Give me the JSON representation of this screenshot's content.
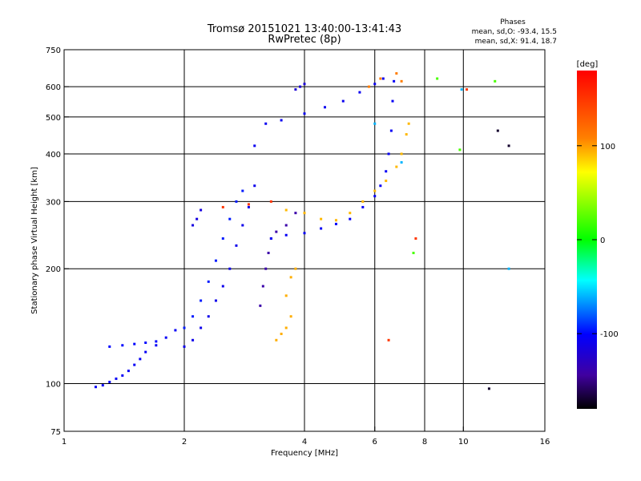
{
  "chart_data": {
    "type": "scatter",
    "title": "Tromsø 20151021 13:40:00-13:41:43",
    "subtitle": "RwPretec (8p)",
    "xlabel": "Frequency [MHz]",
    "ylabel": "Stationary phase Virtual Height [km]",
    "x_scale": "log",
    "y_scale": "log",
    "xlim": [
      1,
      16
    ],
    "ylim": [
      75,
      750
    ],
    "x_ticks": [
      1,
      2,
      4,
      6,
      8,
      10,
      16
    ],
    "y_ticks": [
      75,
      100,
      200,
      300,
      400,
      500,
      600,
      750
    ],
    "x_grid": [
      2,
      4,
      6,
      8,
      10
    ],
    "y_grid": [
      100,
      200,
      300,
      400,
      500,
      600
    ],
    "grid": true,
    "annotations": {
      "header": "Phases",
      "line1": "mean, sd,O: -93.4, 15.5",
      "line2": "mean, sd,X:  91.4, 18.7"
    },
    "colorbar": {
      "label": "[deg]",
      "range": [
        -180,
        180
      ],
      "ticks": [
        100,
        0,
        -100
      ],
      "colors": [
        "#ff0000",
        "#ff8000",
        "#ffff00",
        "#00ff00",
        "#00ffff",
        "#0000ff",
        "#4000a0",
        "#000000"
      ]
    },
    "groups": [
      {
        "phase": -105,
        "points": [
          [
            1.2,
            98
          ],
          [
            1.25,
            99
          ],
          [
            1.3,
            101
          ],
          [
            1.35,
            103
          ],
          [
            1.4,
            105
          ],
          [
            1.45,
            108
          ],
          [
            1.5,
            112
          ],
          [
            1.55,
            116
          ],
          [
            1.6,
            121
          ],
          [
            1.7,
            126
          ],
          [
            1.8,
            132
          ],
          [
            1.9,
            138
          ]
        ]
      },
      {
        "phase": -100,
        "points": [
          [
            1.3,
            125
          ],
          [
            1.4,
            126
          ],
          [
            1.5,
            127
          ],
          [
            1.6,
            128
          ],
          [
            1.7,
            129
          ]
        ]
      },
      {
        "phase": -110,
        "points": [
          [
            2.0,
            125
          ],
          [
            2.1,
            130
          ],
          [
            2.2,
            140
          ],
          [
            2.3,
            150
          ],
          [
            2.4,
            165
          ],
          [
            2.5,
            180
          ],
          [
            2.6,
            200
          ],
          [
            2.7,
            230
          ],
          [
            2.8,
            260
          ],
          [
            2.9,
            290
          ],
          [
            3.0,
            330
          ]
        ]
      },
      {
        "phase": -95,
        "points": [
          [
            2.0,
            140
          ],
          [
            2.1,
            150
          ],
          [
            2.2,
            165
          ],
          [
            2.3,
            185
          ],
          [
            2.4,
            210
          ],
          [
            2.5,
            240
          ],
          [
            2.6,
            270
          ],
          [
            2.7,
            300
          ],
          [
            2.8,
            320
          ]
        ]
      },
      {
        "phase": -115,
        "points": [
          [
            2.1,
            260
          ],
          [
            2.15,
            270
          ],
          [
            2.2,
            285
          ]
        ]
      },
      {
        "phase": -140,
        "points": [
          [
            3.1,
            160
          ],
          [
            3.15,
            180
          ],
          [
            3.2,
            200
          ],
          [
            3.25,
            220
          ],
          [
            3.3,
            240
          ],
          [
            3.4,
            250
          ],
          [
            3.6,
            260
          ],
          [
            3.8,
            280
          ]
        ]
      },
      {
        "phase": -105,
        "points": [
          [
            3.3,
            240
          ],
          [
            3.6,
            245
          ],
          [
            4.0,
            248
          ],
          [
            4.4,
            255
          ],
          [
            4.8,
            262
          ],
          [
            5.2,
            270
          ],
          [
            5.6,
            290
          ],
          [
            6.0,
            310
          ],
          [
            6.2,
            330
          ],
          [
            6.4,
            360
          ],
          [
            6.5,
            400
          ],
          [
            6.6,
            460
          ],
          [
            6.65,
            550
          ],
          [
            6.7,
            620
          ]
        ]
      },
      {
        "phase": -108,
        "points": [
          [
            3.0,
            420
          ],
          [
            3.2,
            480
          ],
          [
            3.5,
            490
          ],
          [
            4.0,
            510
          ],
          [
            4.5,
            530
          ],
          [
            5.0,
            550
          ],
          [
            5.5,
            580
          ],
          [
            6.0,
            610
          ],
          [
            6.3,
            630
          ]
        ]
      },
      {
        "phase": -120,
        "points": [
          [
            3.8,
            590
          ],
          [
            3.9,
            600
          ],
          [
            4.0,
            610
          ]
        ]
      },
      {
        "phase": 95,
        "points": [
          [
            3.4,
            130
          ],
          [
            3.5,
            135
          ],
          [
            3.6,
            140
          ],
          [
            3.7,
            150
          ],
          [
            3.6,
            170
          ],
          [
            3.7,
            190
          ],
          [
            3.8,
            200
          ]
        ]
      },
      {
        "phase": 92,
        "points": [
          [
            3.6,
            285
          ],
          [
            4.0,
            280
          ],
          [
            4.4,
            270
          ],
          [
            4.8,
            268
          ],
          [
            5.2,
            280
          ],
          [
            5.6,
            300
          ],
          [
            6.0,
            320
          ],
          [
            6.4,
            340
          ],
          [
            6.8,
            370
          ],
          [
            7.0,
            400
          ],
          [
            7.2,
            450
          ],
          [
            7.3,
            480
          ]
        ]
      },
      {
        "phase": 110,
        "points": [
          [
            5.8,
            600
          ],
          [
            6.2,
            630
          ],
          [
            6.8,
            650
          ],
          [
            7.0,
            620
          ]
        ]
      },
      {
        "phase": 150,
        "points": [
          [
            2.5,
            290
          ],
          [
            2.9,
            295
          ],
          [
            3.3,
            300
          ],
          [
            6.5,
            130
          ],
          [
            7.6,
            240
          ],
          [
            10.2,
            590
          ]
        ]
      },
      {
        "phase": 20,
        "points": [
          [
            7.5,
            220
          ],
          [
            8.6,
            630
          ],
          [
            9.8,
            410
          ],
          [
            12.0,
            620
          ]
        ]
      },
      {
        "phase": -60,
        "points": [
          [
            6.0,
            480
          ],
          [
            7.0,
            380
          ],
          [
            9.9,
            590
          ],
          [
            13.0,
            200
          ]
        ]
      },
      {
        "phase": -170,
        "points": [
          [
            12.2,
            460
          ],
          [
            13.0,
            420
          ],
          [
            11.6,
            97
          ]
        ]
      }
    ]
  }
}
